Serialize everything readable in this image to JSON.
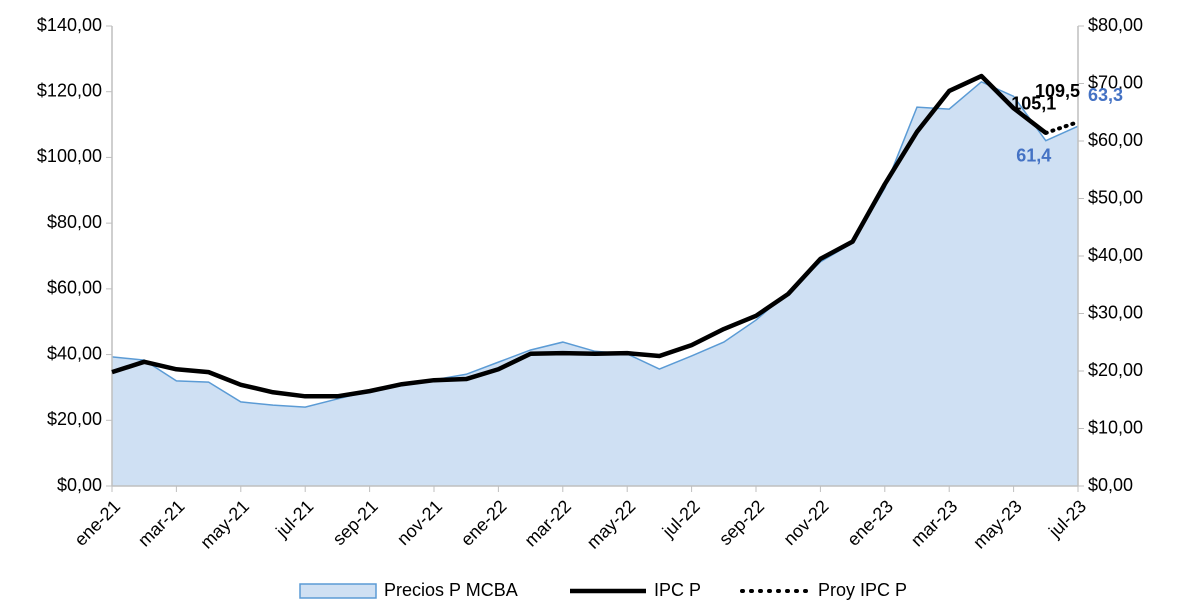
{
  "chart_data": {
    "type": "combo",
    "categories": [
      "ene-21",
      null,
      "mar-21",
      null,
      "may-21",
      null,
      "jul-21",
      null,
      "sep-21",
      null,
      "nov-21",
      null,
      "ene-22",
      null,
      "mar-22",
      null,
      "may-22",
      null,
      "jul-22",
      null,
      "sep-22",
      null,
      "nov-22",
      null,
      "ene-23",
      null,
      "mar-23",
      null,
      "may-23",
      null,
      "jul-23"
    ],
    "series": [
      {
        "name": "Precios P MCBA",
        "kind": "area",
        "axis": "y",
        "color": "#cfe0f3",
        "line_color": "#5b9bd5",
        "label_color": "#000000",
        "values": [
          39.3,
          38.3,
          32,
          31.6,
          25.6,
          24.6,
          24,
          26.5,
          28.9,
          31,
          32.3,
          34,
          37.7,
          41.4,
          43.8,
          41,
          40.2,
          35.6,
          39.6,
          43.8,
          50.5,
          59,
          68.2,
          74,
          90.7,
          115.3,
          114.7,
          123,
          118.6,
          105.1,
          109.5
        ],
        "value_labels": [
          null,
          null,
          null,
          null,
          null,
          null,
          null,
          null,
          null,
          null,
          null,
          null,
          null,
          null,
          null,
          null,
          null,
          null,
          null,
          null,
          null,
          null,
          null,
          null,
          null,
          null,
          null,
          null,
          null,
          "105,1",
          "109,5"
        ]
      },
      {
        "name": "IPC P",
        "kind": "line",
        "axis": "y2",
        "color": "#000000",
        "label_color": "#4472c4",
        "values": [
          19.8,
          21.6,
          20.3,
          19.8,
          17.6,
          16.3,
          15.6,
          15.6,
          16.5,
          17.7,
          18.4,
          18.6,
          20.3,
          23,
          23.1,
          23,
          23.1,
          22.6,
          24.5,
          27.3,
          29.6,
          33.4,
          39.5,
          42.5,
          52.5,
          61.6,
          68.7,
          71.3,
          65.7,
          61.4,
          null
        ],
        "value_labels": [
          null,
          null,
          null,
          null,
          null,
          null,
          null,
          null,
          null,
          null,
          null,
          null,
          null,
          null,
          null,
          null,
          null,
          null,
          null,
          null,
          null,
          null,
          null,
          null,
          null,
          null,
          null,
          null,
          null,
          "61,4",
          null
        ]
      },
      {
        "name": "Proy IPC P",
        "kind": "dotted",
        "axis": "y2",
        "color": "#000000",
        "label_color": "#4472c4",
        "values": [
          null,
          null,
          null,
          null,
          null,
          null,
          null,
          null,
          null,
          null,
          null,
          null,
          null,
          null,
          null,
          null,
          null,
          null,
          null,
          null,
          null,
          null,
          null,
          null,
          null,
          null,
          null,
          null,
          null,
          61.4,
          63.3
        ],
        "value_labels": [
          null,
          null,
          null,
          null,
          null,
          null,
          null,
          null,
          null,
          null,
          null,
          null,
          null,
          null,
          null,
          null,
          null,
          null,
          null,
          null,
          null,
          null,
          null,
          null,
          null,
          null,
          null,
          null,
          null,
          null,
          "63,3"
        ]
      }
    ],
    "ylim": [
      0,
      140
    ],
    "yticks": [
      {
        "value": 0,
        "label": "$0,00"
      },
      {
        "value": 20,
        "label": "$20,00"
      },
      {
        "value": 40,
        "label": "$40,00"
      },
      {
        "value": 60,
        "label": "$60,00"
      },
      {
        "value": 80,
        "label": "$80,00"
      },
      {
        "value": 100,
        "label": "$100,00"
      },
      {
        "value": 120,
        "label": "$120,00"
      },
      {
        "value": 140,
        "label": "$140,00"
      }
    ],
    "y2lim": [
      0,
      80
    ],
    "y2ticks": [
      {
        "value": 0,
        "label": "$0,00"
      },
      {
        "value": 10,
        "label": "$10,00"
      },
      {
        "value": 20,
        "label": "$20,00"
      },
      {
        "value": 30,
        "label": "$30,00"
      },
      {
        "value": 40,
        "label": "$40,00"
      },
      {
        "value": 50,
        "label": "$50,00"
      },
      {
        "value": 60,
        "label": "$60,00"
      },
      {
        "value": 70,
        "label": "$70,00"
      },
      {
        "value": 80,
        "label": "$80,00"
      }
    ],
    "legend": "bottom"
  }
}
